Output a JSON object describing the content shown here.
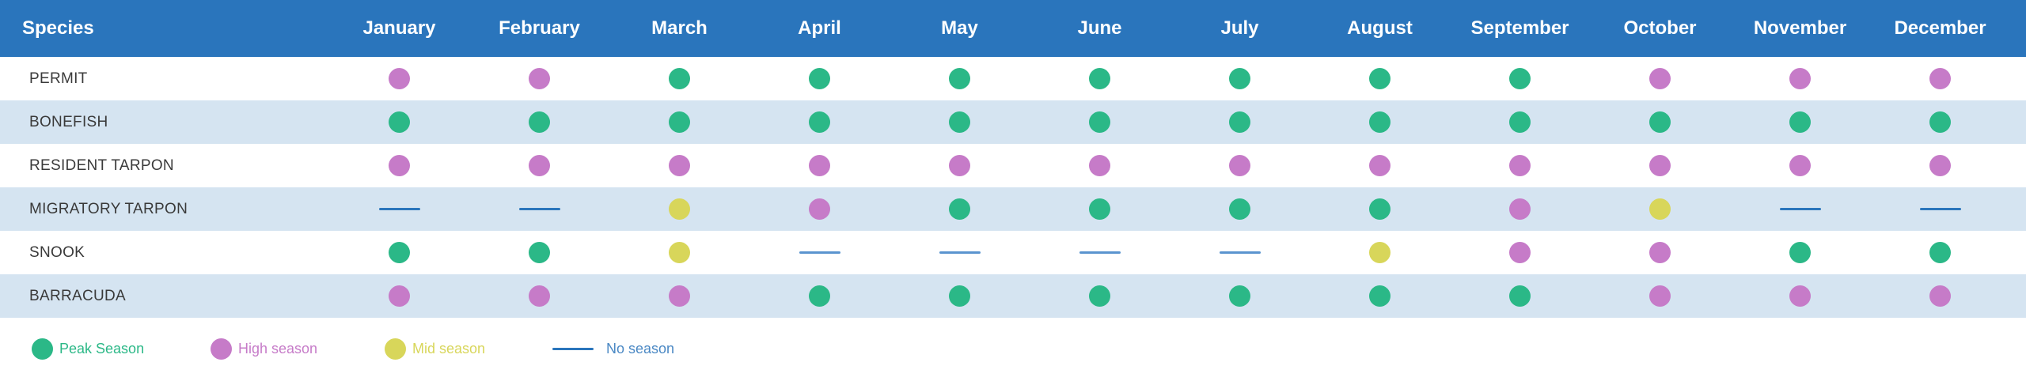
{
  "chart_data": {
    "type": "table",
    "header": {
      "species_label": "Species",
      "months": [
        "January",
        "February",
        "March",
        "April",
        "May",
        "June",
        "July",
        "August",
        "September",
        "October",
        "November",
        "December"
      ]
    },
    "rows": [
      {
        "species": "PERMIT",
        "seasons": [
          "high",
          "high",
          "peak",
          "peak",
          "peak",
          "peak",
          "peak",
          "peak",
          "peak",
          "high",
          "high",
          "high"
        ]
      },
      {
        "species": "BONEFISH",
        "seasons": [
          "peak",
          "peak",
          "peak",
          "peak",
          "peak",
          "peak",
          "peak",
          "peak",
          "peak",
          "peak",
          "peak",
          "peak"
        ]
      },
      {
        "species": "RESIDENT TARPON",
        "seasons": [
          "high",
          "high",
          "high",
          "high",
          "high",
          "high",
          "high",
          "high",
          "high",
          "high",
          "high",
          "high"
        ]
      },
      {
        "species": "MIGRATORY TARPON",
        "seasons": [
          "none",
          "none",
          "mid",
          "high",
          "peak",
          "peak",
          "peak",
          "peak",
          "high",
          "mid",
          "none",
          "none"
        ]
      },
      {
        "species": "SNOOK",
        "seasons": [
          "peak",
          "peak",
          "mid",
          "none",
          "none",
          "none",
          "none",
          "mid",
          "high",
          "high",
          "peak",
          "peak"
        ]
      },
      {
        "species": "BARRACUDA",
        "seasons": [
          "high",
          "high",
          "high",
          "peak",
          "peak",
          "peak",
          "peak",
          "peak",
          "peak",
          "high",
          "high",
          "high"
        ]
      }
    ],
    "legend": [
      {
        "key": "peak",
        "label": "Peak Season"
      },
      {
        "key": "high",
        "label": "High season"
      },
      {
        "key": "mid",
        "label": "Mid season"
      },
      {
        "key": "none",
        "label": "No season"
      }
    ]
  },
  "colors": {
    "header_bg": "#2a75bc",
    "row_alt_bg": "#d5e4f1",
    "peak": "#2bb887",
    "high": "#c67bc8",
    "mid": "#d8d65a",
    "none": "#2a75bc",
    "none_light": "#5a94cf",
    "legend_none_text": "#4a88c4"
  }
}
